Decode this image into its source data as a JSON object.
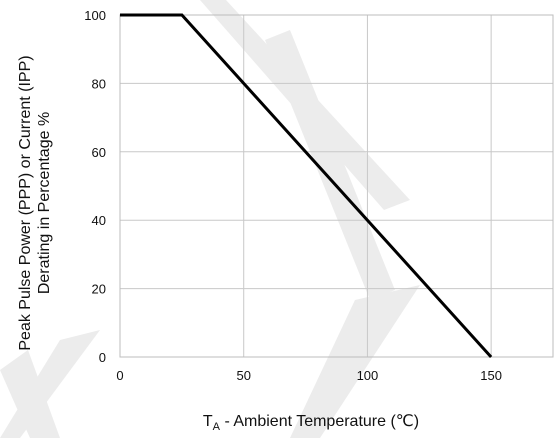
{
  "chart_data": {
    "type": "line",
    "xlabel_main": "T",
    "xlabel_sub": "A",
    "xlabel_rest": " - Ambient Temperature (℃)",
    "ylabel_line1": "Peak Pulse Power (PPP) or Current (IPP)",
    "ylabel_line2": "Derating in Percentage %",
    "xlim": [
      0,
      175
    ],
    "ylim": [
      0,
      100
    ],
    "xticks": [
      0,
      50,
      100,
      150
    ],
    "yticks": [
      0,
      20,
      40,
      60,
      80,
      100
    ],
    "grid": true,
    "series": [
      {
        "x": [
          0,
          25,
          150
        ],
        "y": [
          100,
          100,
          0
        ]
      }
    ]
  }
}
